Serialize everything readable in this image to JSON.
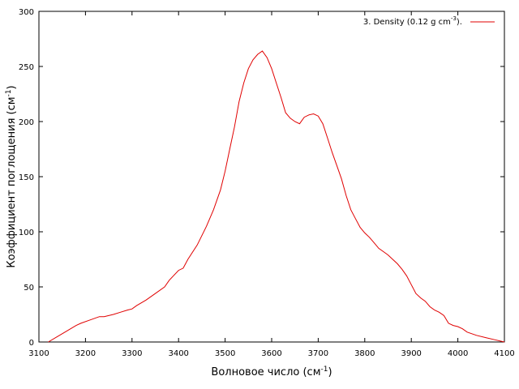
{
  "chart_data": {
    "type": "line",
    "title": "",
    "xlabel": "Волновое число (см",
    "xlabel_sup": "-1",
    "xlabel_suffix": ")",
    "ylabel": "Коэффициент поглощения (см",
    "ylabel_sup": "-1",
    "ylabel_suffix": ")",
    "xlim": [
      3100,
      4100
    ],
    "ylim": [
      0,
      300
    ],
    "x_ticks": [
      3100,
      3200,
      3300,
      3400,
      3500,
      3600,
      3700,
      3800,
      3900,
      4000,
      4100
    ],
    "y_ticks": [
      0,
      50,
      100,
      150,
      200,
      250,
      300
    ],
    "grid": false,
    "legend_position": "top-right",
    "series": [
      {
        "name": "3. Density (0.12 g cm",
        "name_sup": "-3",
        "name_suffix": ").",
        "color": "#e00000",
        "points": [
          [
            3120,
            0
          ],
          [
            3140,
            5
          ],
          [
            3160,
            10
          ],
          [
            3180,
            15
          ],
          [
            3190,
            17
          ],
          [
            3210,
            20
          ],
          [
            3230,
            23
          ],
          [
            3240,
            23
          ],
          [
            3260,
            25
          ],
          [
            3275,
            27
          ],
          [
            3290,
            29
          ],
          [
            3300,
            30
          ],
          [
            3310,
            33
          ],
          [
            3330,
            38
          ],
          [
            3350,
            44
          ],
          [
            3370,
            50
          ],
          [
            3380,
            56
          ],
          [
            3400,
            65
          ],
          [
            3410,
            67
          ],
          [
            3420,
            75
          ],
          [
            3440,
            88
          ],
          [
            3460,
            105
          ],
          [
            3475,
            120
          ],
          [
            3490,
            138
          ],
          [
            3500,
            155
          ],
          [
            3510,
            175
          ],
          [
            3520,
            195
          ],
          [
            3530,
            218
          ],
          [
            3540,
            235
          ],
          [
            3550,
            248
          ],
          [
            3560,
            256
          ],
          [
            3570,
            261
          ],
          [
            3580,
            264
          ],
          [
            3590,
            258
          ],
          [
            3600,
            248
          ],
          [
            3610,
            235
          ],
          [
            3620,
            222
          ],
          [
            3630,
            208
          ],
          [
            3640,
            203
          ],
          [
            3650,
            200
          ],
          [
            3660,
            198
          ],
          [
            3670,
            204
          ],
          [
            3680,
            206
          ],
          [
            3690,
            207
          ],
          [
            3700,
            205
          ],
          [
            3710,
            198
          ],
          [
            3720,
            185
          ],
          [
            3730,
            172
          ],
          [
            3740,
            160
          ],
          [
            3750,
            148
          ],
          [
            3760,
            133
          ],
          [
            3770,
            120
          ],
          [
            3780,
            112
          ],
          [
            3790,
            104
          ],
          [
            3800,
            99
          ],
          [
            3810,
            95
          ],
          [
            3820,
            90
          ],
          [
            3830,
            85
          ],
          [
            3840,
            82
          ],
          [
            3850,
            79
          ],
          [
            3860,
            75
          ],
          [
            3870,
            71
          ],
          [
            3880,
            66
          ],
          [
            3890,
            60
          ],
          [
            3900,
            52
          ],
          [
            3910,
            44
          ],
          [
            3920,
            40
          ],
          [
            3930,
            37
          ],
          [
            3940,
            32
          ],
          [
            3950,
            29
          ],
          [
            3960,
            27
          ],
          [
            3970,
            24
          ],
          [
            3980,
            17
          ],
          [
            3990,
            15
          ],
          [
            4000,
            14
          ],
          [
            4010,
            12
          ],
          [
            4020,
            9
          ],
          [
            4040,
            6
          ],
          [
            4060,
            4
          ],
          [
            4080,
            2
          ],
          [
            4100,
            0
          ]
        ]
      }
    ]
  }
}
